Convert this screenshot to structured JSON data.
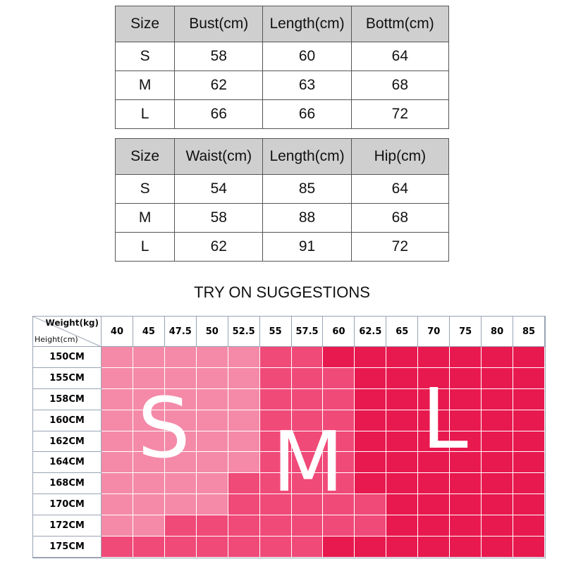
{
  "top_table": {
    "headers": [
      "Size",
      "Bust(cm)",
      "Length(cm)",
      "Bottm(cm)"
    ],
    "rows": [
      [
        "S",
        "58",
        "60",
        "64"
      ],
      [
        "M",
        "62",
        "63",
        "68"
      ],
      [
        "L",
        "66",
        "66",
        "72"
      ]
    ]
  },
  "bottom_table": {
    "headers": [
      "Size",
      "Waist(cm)",
      "Length(cm)",
      "Hip(cm)"
    ],
    "rows": [
      [
        "S",
        "54",
        "85",
        "64"
      ],
      [
        "M",
        "58",
        "88",
        "68"
      ],
      [
        "L",
        "62",
        "91",
        "72"
      ]
    ]
  },
  "suggestions": {
    "title": "TRY ON SUGGESTIONS",
    "weight_label": "Weight(kg)",
    "height_label": "Height(cm)",
    "weights": [
      "40",
      "45",
      "47.5",
      "50",
      "52.5",
      "55",
      "57.5",
      "60",
      "62.5",
      "65",
      "70",
      "75",
      "80",
      "85"
    ],
    "heights": [
      "150CM",
      "155CM",
      "158CM",
      "160CM",
      "162CM",
      "164CM",
      "168CM",
      "170CM",
      "172CM",
      "175CM"
    ],
    "size_grid": [
      [
        "S",
        "S",
        "S",
        "S",
        "S",
        "M",
        "M",
        "L",
        "L",
        "L",
        "L",
        "L",
        "L",
        "L"
      ],
      [
        "S",
        "S",
        "S",
        "S",
        "S",
        "M",
        "M",
        "M",
        "L",
        "L",
        "L",
        "L",
        "L",
        "L"
      ],
      [
        "S",
        "S",
        "S",
        "S",
        "S",
        "M",
        "M",
        "M",
        "L",
        "L",
        "L",
        "L",
        "L",
        "L"
      ],
      [
        "S",
        "S",
        "S",
        "S",
        "S",
        "M",
        "M",
        "M",
        "L",
        "L",
        "L",
        "L",
        "L",
        "L"
      ],
      [
        "S",
        "S",
        "S",
        "S",
        "S",
        "M",
        "M",
        "M",
        "L",
        "L",
        "L",
        "L",
        "L",
        "L"
      ],
      [
        "S",
        "S",
        "S",
        "S",
        "S",
        "M",
        "M",
        "M",
        "L",
        "L",
        "L",
        "L",
        "L",
        "L"
      ],
      [
        "S",
        "S",
        "S",
        "S",
        "M",
        "M",
        "M",
        "M",
        "L",
        "L",
        "L",
        "L",
        "L",
        "L"
      ],
      [
        "S",
        "S",
        "S",
        "S",
        "M",
        "M",
        "M",
        "M",
        "M",
        "L",
        "L",
        "L",
        "L",
        "L"
      ],
      [
        "S",
        "S",
        "M",
        "M",
        "M",
        "M",
        "M",
        "M",
        "M",
        "L",
        "L",
        "L",
        "L",
        "L"
      ],
      [
        "M",
        "M",
        "M",
        "M",
        "M",
        "M",
        "M",
        "L",
        "L",
        "L",
        "L",
        "L",
        "L",
        "L"
      ]
    ],
    "size_letters": {
      "s": "S",
      "m": "M",
      "l": "L"
    },
    "colors": {
      "S": "#f48aa8",
      "M": "#f04a78",
      "L": "#e8194f"
    }
  }
}
